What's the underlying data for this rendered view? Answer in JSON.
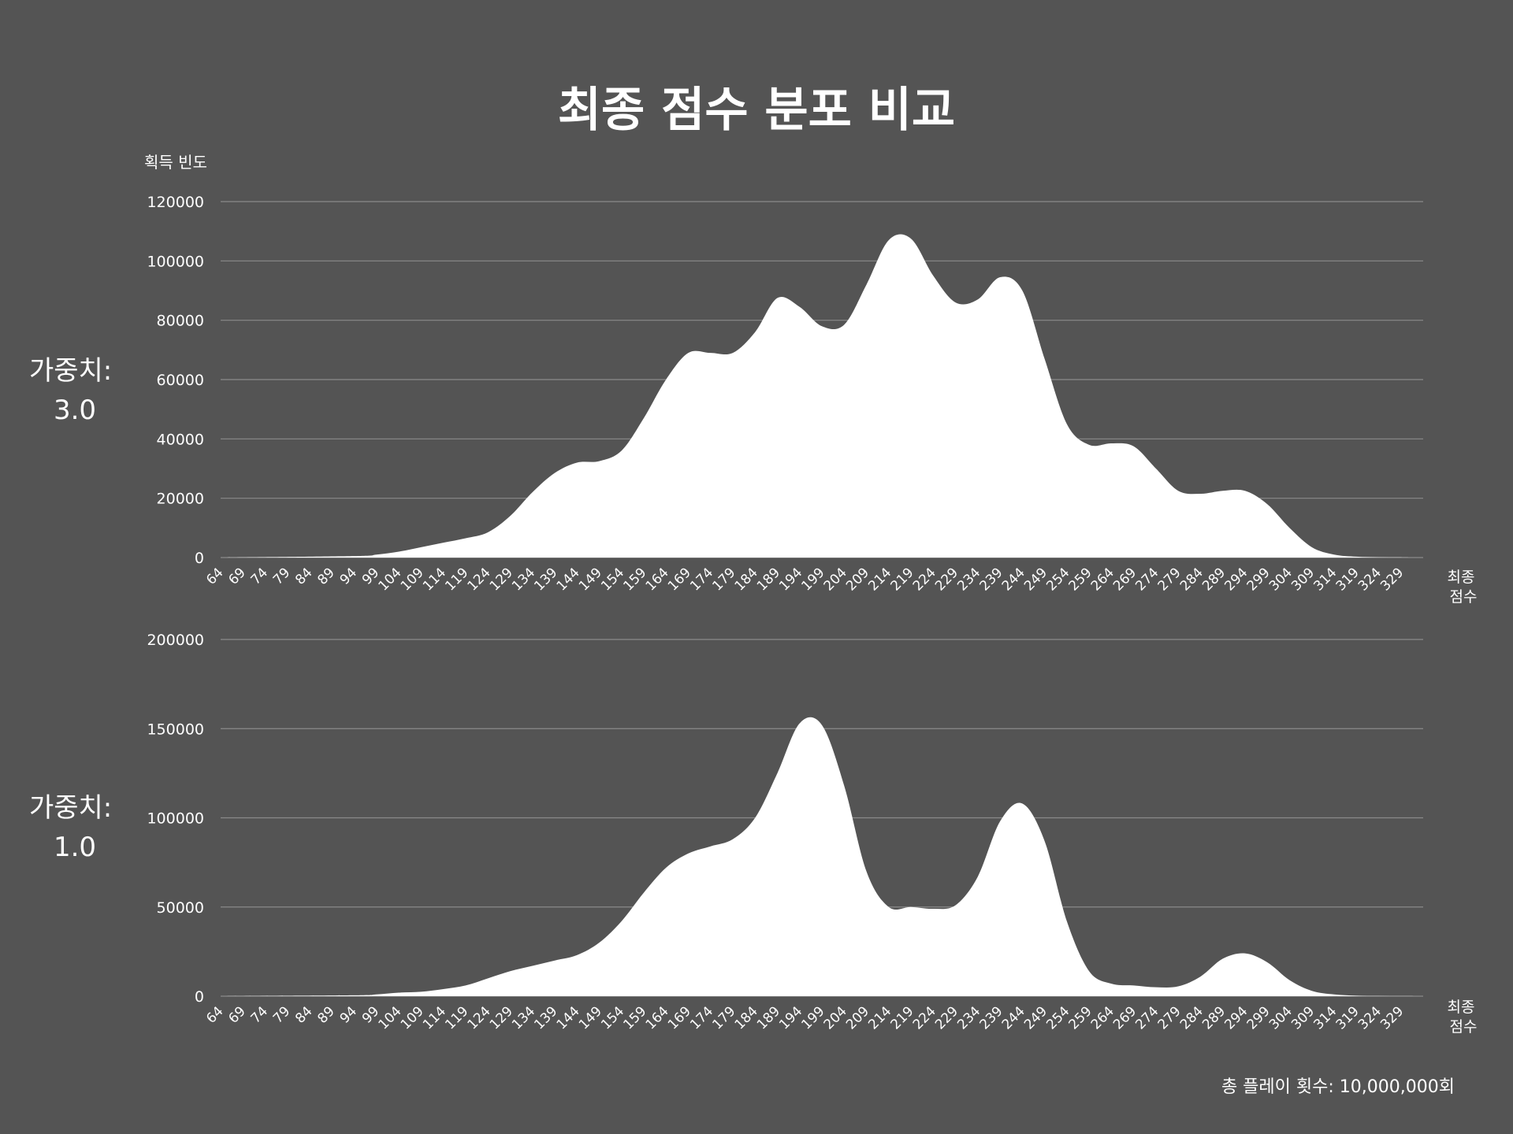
{
  "title": "최종 점수 분포 비교",
  "y_axis_label": "획득 빈도",
  "x_axis_label_lines": [
    "최종",
    "점수"
  ],
  "footer": "총 플레이 횟수: 10,000,000회",
  "panels": [
    {
      "label_lines": [
        "가중치:",
        "3.0"
      ]
    },
    {
      "label_lines": [
        "가중치:",
        "1.0"
      ]
    }
  ],
  "colors": {
    "background": "#545454",
    "fill": "#ffffff",
    "grid": "#8a8a8a",
    "text": "#ffffff"
  },
  "chart_data": [
    {
      "type": "area",
      "name": "가중치: 3.0",
      "xlabel": "최종 점수",
      "ylabel": "획득 빈도",
      "xlim": [
        64,
        334
      ],
      "ylim": [
        0,
        120000
      ],
      "yticks": [
        0,
        20000,
        40000,
        60000,
        80000,
        100000,
        120000
      ],
      "xticks": [
        64,
        69,
        74,
        79,
        84,
        89,
        94,
        99,
        104,
        109,
        114,
        119,
        124,
        129,
        134,
        139,
        144,
        149,
        154,
        159,
        164,
        169,
        174,
        179,
        184,
        189,
        194,
        199,
        204,
        209,
        214,
        219,
        224,
        229,
        234,
        239,
        244,
        249,
        254,
        259,
        264,
        269,
        274,
        279,
        284,
        289,
        294,
        299,
        304,
        309,
        314,
        319,
        324,
        329
      ],
      "grid": true,
      "x": [
        64,
        94,
        99,
        104,
        109,
        114,
        119,
        124,
        129,
        134,
        139,
        144,
        149,
        154,
        159,
        164,
        169,
        174,
        179,
        184,
        189,
        194,
        199,
        204,
        209,
        214,
        219,
        224,
        229,
        234,
        239,
        244,
        249,
        254,
        259,
        264,
        269,
        274,
        279,
        284,
        289,
        294,
        299,
        304,
        309,
        314,
        319,
        324,
        329,
        334
      ],
      "y": [
        0,
        500,
        1000,
        2000,
        3500,
        5000,
        6500,
        8500,
        14000,
        22000,
        28500,
        32000,
        32500,
        36000,
        47000,
        60000,
        69000,
        69000,
        69000,
        76000,
        87500,
        84500,
        78000,
        78500,
        92000,
        107000,
        107500,
        95000,
        86000,
        87000,
        94500,
        90000,
        67000,
        45000,
        38000,
        38500,
        37500,
        30000,
        22500,
        21500,
        22500,
        22500,
        18000,
        10000,
        3500,
        1000,
        300,
        100,
        50,
        0
      ]
    },
    {
      "type": "area",
      "name": "가중치: 1.0",
      "xlabel": "최종 점수",
      "ylabel": "획득 빈도",
      "xlim": [
        64,
        334
      ],
      "ylim": [
        0,
        200000
      ],
      "yticks": [
        0,
        50000,
        100000,
        150000,
        200000
      ],
      "xticks": [
        64,
        69,
        74,
        79,
        84,
        89,
        94,
        99,
        104,
        109,
        114,
        119,
        124,
        129,
        134,
        139,
        144,
        149,
        154,
        159,
        164,
        169,
        174,
        179,
        184,
        189,
        194,
        199,
        204,
        209,
        214,
        219,
        224,
        229,
        234,
        239,
        244,
        249,
        254,
        259,
        264,
        269,
        274,
        279,
        284,
        289,
        294,
        299,
        304,
        309,
        314,
        319,
        324,
        329
      ],
      "grid": true,
      "x": [
        64,
        94,
        99,
        104,
        109,
        114,
        119,
        124,
        129,
        134,
        139,
        144,
        149,
        154,
        159,
        164,
        169,
        174,
        179,
        184,
        189,
        194,
        199,
        204,
        209,
        214,
        219,
        224,
        229,
        234,
        239,
        244,
        249,
        254,
        259,
        264,
        269,
        274,
        279,
        284,
        289,
        294,
        299,
        304,
        309,
        314,
        319,
        324,
        329,
        334
      ],
      "y": [
        0,
        500,
        1000,
        2000,
        2500,
        4000,
        6000,
        10000,
        14000,
        17000,
        20000,
        23000,
        30000,
        42000,
        58000,
        72000,
        80000,
        84000,
        88000,
        100000,
        125000,
        153000,
        152000,
        118000,
        70000,
        50000,
        50000,
        49000,
        51000,
        67000,
        98000,
        108000,
        87000,
        42000,
        14000,
        7000,
        6000,
        5000,
        5500,
        11000,
        21000,
        24000,
        19000,
        9000,
        3000,
        1000,
        300,
        100,
        50,
        0
      ]
    }
  ]
}
